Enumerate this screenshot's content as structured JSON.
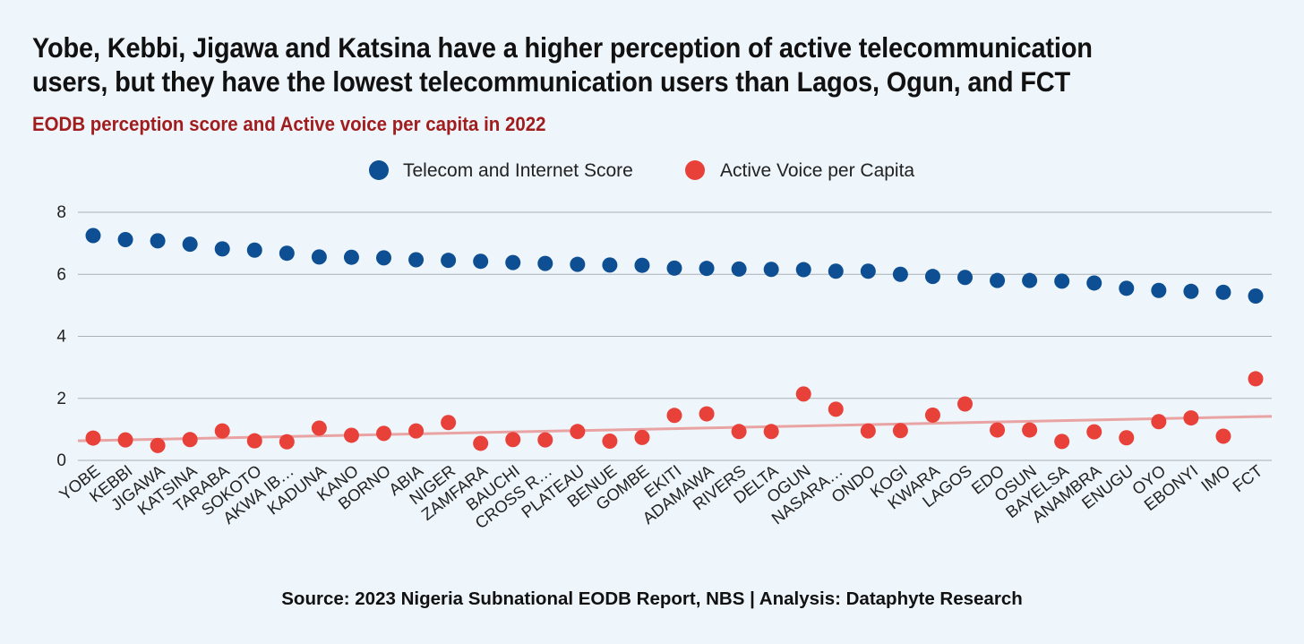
{
  "title": "Yobe, Kebbi, Jigawa and Katsina have a higher perception of active telecommunication users, but they have the lowest telecommunication users than Lagos, Ogun, and FCT",
  "subtitle": "EODB perception score and Active voice  per capita in 2022",
  "source": "Source: 2023 Nigeria Subnational EODB Report, NBS | Analysis: Dataphyte Research",
  "colors": {
    "background": "#eef5fb",
    "telecom": "#0d4f92",
    "voice": "#e8413a",
    "trend": "#eaa3a3",
    "grid": "#a9b0b6",
    "subtitle": "#a11d1d"
  },
  "chart_data": {
    "type": "scatter",
    "ylim": [
      0,
      8
    ],
    "yticks": [
      0,
      2,
      4,
      6,
      8
    ],
    "grid": true,
    "legend_position": "top-center",
    "category_labels": [
      "YOBE",
      "KEBBI",
      "JIGAWA",
      "KATSINA",
      "TARABA",
      "SOKOTO",
      "AKWA IB…",
      "KADUNA",
      "KANO",
      "BORNO",
      "ABIA",
      "NIGER",
      "ZAMFARA",
      "BAUCHI",
      "CROSS R…",
      "PLATEAU",
      "BENUE",
      "GOMBE",
      "EKITI",
      "ADAMAWA",
      "RIVERS",
      "DELTA",
      "OGUN",
      "NASARA…",
      "ONDO",
      "KOGI",
      "KWARA",
      "LAGOS",
      "EDO",
      "OSUN",
      "BAYELSA",
      "ANAMBRA",
      "ENUGU",
      "OYO",
      "EBONYI",
      "IMO",
      "FCT"
    ],
    "series": [
      {
        "name": "Telecom and Internet Score",
        "color": "#0d4f92",
        "values": [
          7.25,
          7.12,
          7.08,
          6.97,
          6.82,
          6.78,
          6.68,
          6.56,
          6.55,
          6.53,
          6.47,
          6.45,
          6.42,
          6.38,
          6.35,
          6.32,
          6.3,
          6.29,
          6.2,
          6.19,
          6.17,
          6.16,
          6.15,
          6.1,
          6.1,
          6.0,
          5.93,
          5.9,
          5.8,
          5.8,
          5.78,
          5.72,
          5.55,
          5.48,
          5.45,
          5.42,
          5.3
        ]
      },
      {
        "name": "Active Voice per Capita",
        "color": "#e8413a",
        "values": [
          0.72,
          0.66,
          0.48,
          0.67,
          0.95,
          0.63,
          0.6,
          1.04,
          0.81,
          0.87,
          0.95,
          1.22,
          0.55,
          0.67,
          0.66,
          0.93,
          0.62,
          0.74,
          1.45,
          1.5,
          0.93,
          0.93,
          2.14,
          1.65,
          0.95,
          0.96,
          1.46,
          1.82,
          0.98,
          0.98,
          0.61,
          0.92,
          0.73,
          1.25,
          1.37,
          0.78,
          2.63
        ]
      }
    ],
    "trendline": {
      "series": "Active Voice per Capita",
      "start": 0.63,
      "end": 1.42
    }
  }
}
